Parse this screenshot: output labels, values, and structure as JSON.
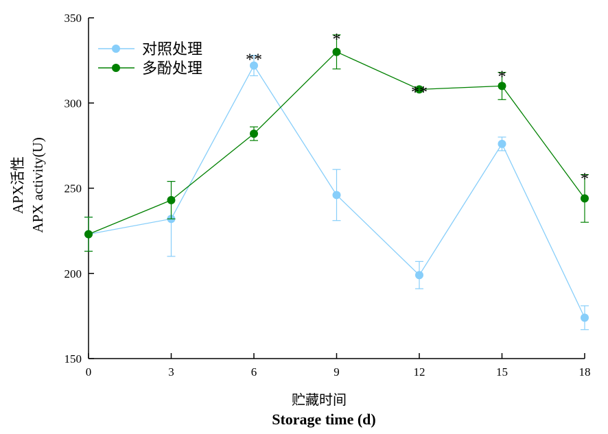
{
  "chart_data": {
    "type": "line",
    "x": [
      0,
      3,
      6,
      9,
      12,
      15,
      18
    ],
    "xlabel": [
      "贮藏时间",
      "Storage time (d)"
    ],
    "ylabel": [
      "APX活性",
      "APX activity(U)"
    ],
    "ylim": [
      150,
      350
    ],
    "xlim": [
      0,
      18
    ],
    "yticks": [
      150,
      200,
      250,
      300,
      350
    ],
    "xticks": [
      0,
      3,
      6,
      9,
      12,
      15,
      18
    ],
    "grid": false,
    "legend_position": "top-left",
    "series": [
      {
        "name": "对照处理",
        "color": "#87CEFA",
        "values": [
          223,
          232,
          322,
          246,
          199,
          276,
          174
        ],
        "errors": [
          10,
          22,
          6,
          15,
          8,
          4,
          7
        ]
      },
      {
        "name": "多酚处理",
        "color": "#008000",
        "values": [
          223,
          243,
          282,
          330,
          308,
          310,
          244
        ],
        "errors": [
          10,
          11,
          4,
          10,
          1,
          8,
          14
        ]
      }
    ],
    "annotations": [
      {
        "x": 6,
        "text": "**"
      },
      {
        "x": 9,
        "text": "*"
      },
      {
        "x": 12,
        "text": "**"
      },
      {
        "x": 15,
        "text": "*"
      },
      {
        "x": 18,
        "text": "*"
      }
    ]
  }
}
